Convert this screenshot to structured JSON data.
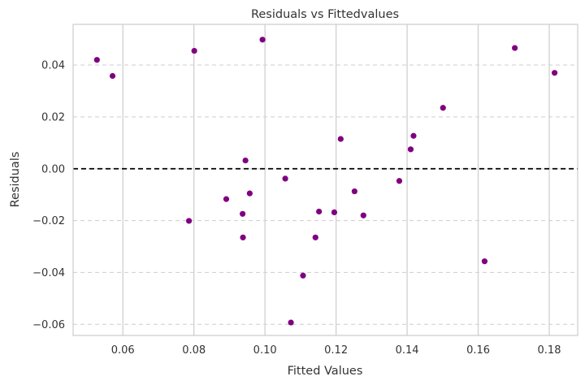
{
  "chart_data": {
    "type": "scatter",
    "title": "Residuals vs Fittedvalues",
    "xlabel": "Fitted Values",
    "ylabel": "Residuals",
    "xlim": [
      0.046,
      0.188
    ],
    "ylim": [
      -0.0643,
      0.0557
    ],
    "xticks": [
      0.06,
      0.08,
      0.1,
      0.12,
      0.14,
      0.16,
      0.18
    ],
    "xtick_labels": [
      "0.06",
      "0.08",
      "0.10",
      "0.12",
      "0.14",
      "0.16",
      "0.18"
    ],
    "yticks": [
      -0.06,
      -0.04,
      -0.02,
      0.0,
      0.02,
      0.04
    ],
    "ytick_labels": [
      "−0.06",
      "−0.04",
      "−0.02",
      "0.00",
      "0.02",
      "0.04"
    ],
    "grid": {
      "x": "solid",
      "y": "dashed"
    },
    "reference_line": {
      "y": 0.0,
      "style": "dashed",
      "color": "#000000"
    },
    "marker_color": "#800080",
    "points": [
      {
        "x": 0.0527,
        "y": 0.042
      },
      {
        "x": 0.0571,
        "y": 0.0358
      },
      {
        "x": 0.0786,
        "y": -0.0201
      },
      {
        "x": 0.0801,
        "y": 0.0455
      },
      {
        "x": 0.0891,
        "y": -0.0117
      },
      {
        "x": 0.0937,
        "y": -0.0174
      },
      {
        "x": 0.0938,
        "y": -0.0265
      },
      {
        "x": 0.0945,
        "y": 0.0032
      },
      {
        "x": 0.0957,
        "y": -0.0095
      },
      {
        "x": 0.0993,
        "y": 0.0498
      },
      {
        "x": 0.1057,
        "y": -0.0038
      },
      {
        "x": 0.1073,
        "y": -0.0593
      },
      {
        "x": 0.1107,
        "y": -0.0412
      },
      {
        "x": 0.1142,
        "y": -0.0265
      },
      {
        "x": 0.1152,
        "y": -0.0165
      },
      {
        "x": 0.1195,
        "y": -0.0168
      },
      {
        "x": 0.1213,
        "y": 0.0115
      },
      {
        "x": 0.1252,
        "y": -0.0087
      },
      {
        "x": 0.1277,
        "y": -0.018
      },
      {
        "x": 0.1378,
        "y": -0.0047
      },
      {
        "x": 0.141,
        "y": 0.0075
      },
      {
        "x": 0.1418,
        "y": 0.0127
      },
      {
        "x": 0.1501,
        "y": 0.0235
      },
      {
        "x": 0.1618,
        "y": -0.0357
      },
      {
        "x": 0.1703,
        "y": 0.0466
      },
      {
        "x": 0.1815,
        "y": 0.037
      }
    ]
  }
}
